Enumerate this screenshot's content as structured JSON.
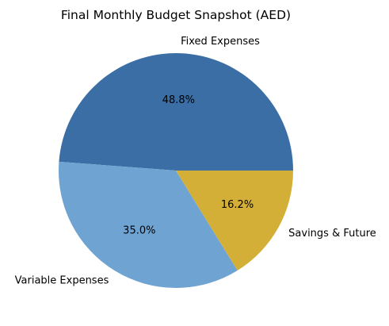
{
  "chart_data": {
    "type": "pie",
    "title": "Final Monthly Budget Snapshot (AED)",
    "slices": [
      {
        "label": "Fixed Expenses",
        "percent": 48.8,
        "percent_label": "48.8%",
        "color": "#3a6ea5"
      },
      {
        "label": "Variable Expenses",
        "percent": 35.0,
        "percent_label": "35.0%",
        "color": "#6fa3d2"
      },
      {
        "label": "Savings & Future",
        "percent": 16.2,
        "percent_label": "16.2%",
        "color": "#d4af37"
      }
    ],
    "start_angle_deg": 0,
    "direction": "counterclockwise",
    "legend": "none"
  }
}
